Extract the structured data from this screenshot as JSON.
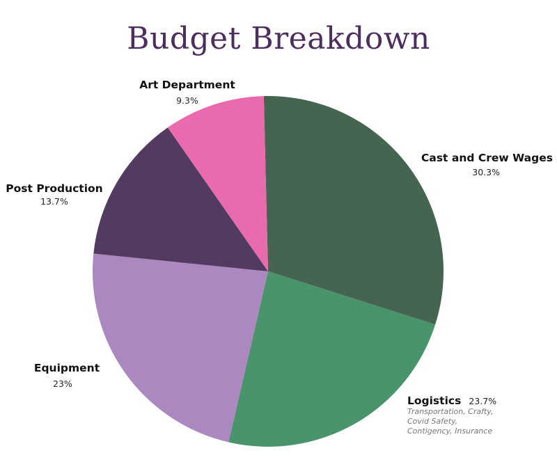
{
  "chart_data": {
    "type": "pie",
    "title": "Budget Breakdown",
    "slices": [
      {
        "name": "Cast and Crew Wages",
        "value": 30.3,
        "label": "30.3%",
        "color": "#466551"
      },
      {
        "name": "Logistics",
        "value": 23.7,
        "label": "23.7%",
        "color": "#49946a",
        "note": [
          "Transportation, Crafty,",
          "Covid Safety,",
          "Contigency, Insurance"
        ]
      },
      {
        "name": "Equipment",
        "value": 23,
        "label": "23%",
        "color": "#ab88c0"
      },
      {
        "name": "Post Production",
        "value": 13.7,
        "label": "13.7%",
        "color": "#523a61"
      },
      {
        "name": "Art Department",
        "value": 9.3,
        "label": "9.3%",
        "color": "#ea6bad"
      }
    ]
  }
}
